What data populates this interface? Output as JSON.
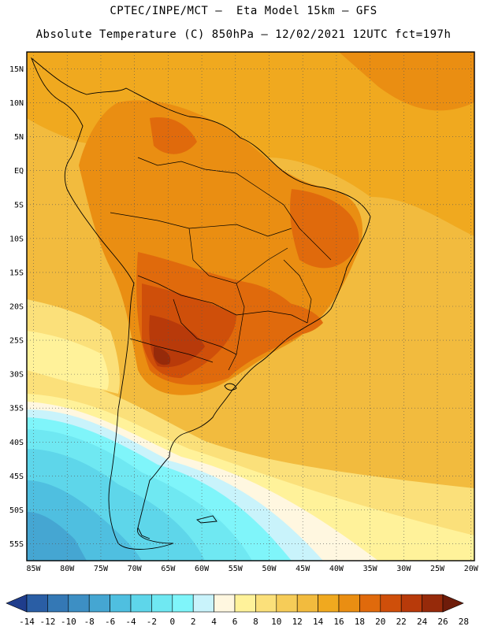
{
  "header": {
    "line1": "CPTEC/INPE/MCT –  Eta Model 15km – GFS",
    "line2": "Absolute Temperature (C) 850hPa – 12/02/2021 12UTC fct=197h"
  },
  "map": {
    "lat_labels": [
      "15N",
      "10N",
      "5N",
      "EQ",
      "5S",
      "10S",
      "15S",
      "20S",
      "25S",
      "30S",
      "35S",
      "40S",
      "45S",
      "50S",
      "55S"
    ],
    "lat_values": [
      15,
      10,
      5,
      0,
      -5,
      -10,
      -15,
      -20,
      -25,
      -30,
      -35,
      -40,
      -45,
      -50,
      -55
    ],
    "lon_labels": [
      "85W",
      "80W",
      "75W",
      "70W",
      "65W",
      "60W",
      "55W",
      "50W",
      "45W",
      "40W",
      "35W",
      "30W",
      "25W",
      "20W"
    ],
    "lon_values": [
      -85,
      -80,
      -75,
      -70,
      -65,
      -60,
      -55,
      -50,
      -45,
      -40,
      -35,
      -30,
      -25,
      -20
    ]
  },
  "colorbar": {
    "labels": [
      "-14",
      "-12",
      "-10",
      "-8",
      "-6",
      "-4",
      "-2",
      "0",
      "2",
      "4",
      "6",
      "8",
      "10",
      "12",
      "14",
      "16",
      "18",
      "20",
      "22",
      "24",
      "26",
      "28"
    ],
    "colors": [
      "#1f3d8c",
      "#2a5ea5",
      "#3478b5",
      "#3d8fc4",
      "#45a6d2",
      "#4fbfe0",
      "#5ed6ea",
      "#6fe8f2",
      "#7ff5fa",
      "#c9f3fb",
      "#fff7e0",
      "#fff29a",
      "#fbe07a",
      "#f6cc58",
      "#f2bb3e",
      "#f0a91f",
      "#ea8e12",
      "#e06a0c",
      "#cf4f0a",
      "#b83a0a",
      "#962a0a",
      "#6e1c0a"
    ]
  }
}
